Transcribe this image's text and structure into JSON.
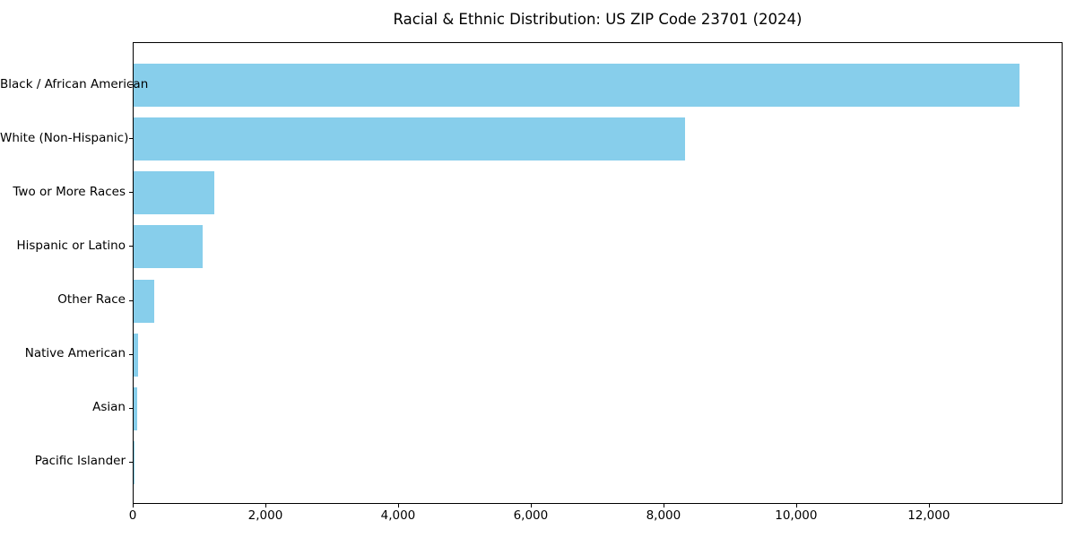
{
  "chart_data": {
    "type": "bar",
    "orientation": "horizontal",
    "title": "Racial & Ethnic Distribution: US ZIP Code 23701 (2024)",
    "categories": [
      "Black / African American",
      "White (Non-Hispanic)",
      "Two or More Races",
      "Hispanic or Latino",
      "Other Race",
      "Native American",
      "Asian",
      "Pacific Islander"
    ],
    "values": [
      13350,
      8310,
      1210,
      1040,
      310,
      70,
      55,
      15
    ],
    "xlabel": "",
    "ylabel": "",
    "xlim": [
      0,
      14016
    ],
    "x_ticks": [
      0,
      2000,
      4000,
      6000,
      8000,
      10000,
      12000
    ],
    "x_tick_labels": [
      "0",
      "2,000",
      "4,000",
      "6,000",
      "8,000",
      "10,000",
      "12,000"
    ],
    "bar_color": "#87ceeb",
    "axis_color": "#000000",
    "background_color": "#ffffff",
    "grid": false,
    "legend": null
  }
}
